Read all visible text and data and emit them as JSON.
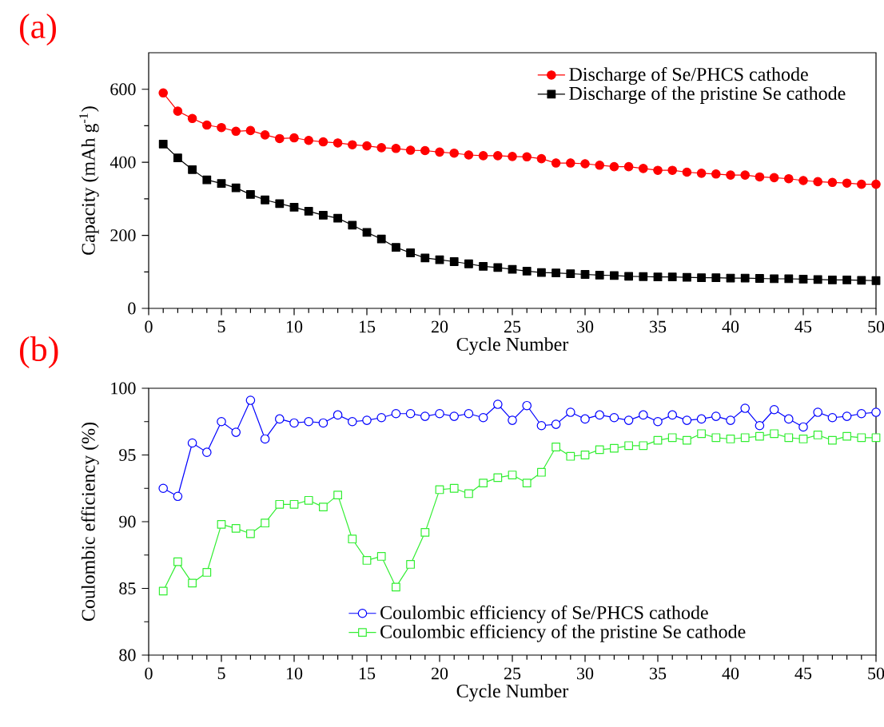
{
  "chart_data": [
    {
      "type": "line",
      "title": "(a)",
      "xlabel": "Cycle Number",
      "ylabel": "Capacity (mAh g$^{-1}$)",
      "xlim": [
        0,
        50
      ],
      "xticks": [
        0,
        5,
        10,
        15,
        20,
        25,
        30,
        35,
        40,
        45,
        50
      ],
      "ylim": [
        0,
        700
      ],
      "yticks": [
        0,
        200,
        400,
        600
      ],
      "legend": "top right",
      "x": [
        1,
        2,
        3,
        4,
        5,
        6,
        7,
        8,
        9,
        10,
        11,
        12,
        13,
        14,
        15,
        16,
        17,
        18,
        19,
        20,
        21,
        22,
        23,
        24,
        25,
        26,
        27,
        28,
        29,
        30,
        31,
        32,
        33,
        34,
        35,
        36,
        37,
        38,
        39,
        40,
        41,
        42,
        43,
        44,
        45,
        46,
        47,
        48,
        49,
        50
      ],
      "series": [
        {
          "name": "Discharge of Se/PHCS cathode",
          "color": "#ff0000",
          "marker": "circle",
          "values": [
            590,
            540,
            520,
            502,
            495,
            485,
            487,
            475,
            465,
            467,
            460,
            456,
            453,
            448,
            445,
            440,
            438,
            433,
            432,
            428,
            425,
            420,
            418,
            418,
            416,
            415,
            410,
            398,
            398,
            396,
            392,
            388,
            388,
            383,
            378,
            378,
            373,
            370,
            368,
            365,
            365,
            360,
            358,
            355,
            350,
            347,
            345,
            343,
            340,
            340
          ]
        },
        {
          "name": "Discharge of the pristine Se cathode",
          "color": "#000000",
          "marker": "square",
          "values": [
            450,
            412,
            380,
            352,
            342,
            330,
            312,
            297,
            287,
            277,
            266,
            255,
            247,
            228,
            208,
            190,
            167,
            152,
            138,
            133,
            128,
            122,
            115,
            112,
            107,
            102,
            98,
            97,
            95,
            93,
            91,
            90,
            88,
            87,
            86,
            86,
            85,
            84,
            84,
            83,
            83,
            82,
            81,
            81,
            80,
            79,
            78,
            78,
            77,
            76
          ]
        }
      ]
    },
    {
      "type": "line",
      "title": "(b)",
      "xlabel": "Cycle Number",
      "ylabel": "Coulombic efficiency (%)",
      "xlim": [
        0,
        50
      ],
      "xticks": [
        0,
        5,
        10,
        15,
        20,
        25,
        30,
        35,
        40,
        45,
        50
      ],
      "ylim": [
        80,
        100
      ],
      "yticks": [
        80,
        85,
        90,
        95,
        100
      ],
      "legend": "bottom",
      "x": [
        1,
        2,
        3,
        4,
        5,
        6,
        7,
        8,
        9,
        10,
        11,
        12,
        13,
        14,
        15,
        16,
        17,
        18,
        19,
        20,
        21,
        22,
        23,
        24,
        25,
        26,
        27,
        28,
        29,
        30,
        31,
        32,
        33,
        34,
        35,
        36,
        37,
        38,
        39,
        40,
        41,
        42,
        43,
        44,
        45,
        46,
        47,
        48,
        49,
        50
      ],
      "series": [
        {
          "name": "Coulombic efficiency of Se/PHCS cathode",
          "color": "#0000ff",
          "marker": "circle",
          "values": [
            92.5,
            91.9,
            95.9,
            95.2,
            97.5,
            96.7,
            99.1,
            96.2,
            97.7,
            97.4,
            97.5,
            97.4,
            98.0,
            97.5,
            97.6,
            97.8,
            98.1,
            98.1,
            97.9,
            98.1,
            97.9,
            98.1,
            97.8,
            98.8,
            97.6,
            98.7,
            97.2,
            97.3,
            98.2,
            97.7,
            98.0,
            97.8,
            97.6,
            98.0,
            97.5,
            98.0,
            97.6,
            97.7,
            97.9,
            97.6,
            98.5,
            97.2,
            98.4,
            97.7,
            97.1,
            98.2,
            97.8,
            97.9,
            98.1,
            98.2
          ]
        },
        {
          "name": "Coulombic efficiency of the pristine Se cathode",
          "color": "#33ee33",
          "marker": "square",
          "values": [
            84.8,
            87.0,
            85.4,
            86.2,
            89.8,
            89.5,
            89.1,
            89.9,
            91.3,
            91.3,
            91.6,
            91.1,
            92.0,
            88.7,
            87.1,
            87.4,
            85.1,
            86.8,
            89.2,
            92.4,
            92.5,
            92.1,
            92.9,
            93.3,
            93.5,
            92.9,
            93.7,
            95.6,
            94.9,
            95.0,
            95.4,
            95.5,
            95.7,
            95.7,
            96.1,
            96.3,
            96.1,
            96.6,
            96.3,
            96.2,
            96.3,
            96.4,
            96.6,
            96.3,
            96.2,
            96.5,
            96.1,
            96.4,
            96.3,
            96.3
          ]
        }
      ]
    }
  ]
}
